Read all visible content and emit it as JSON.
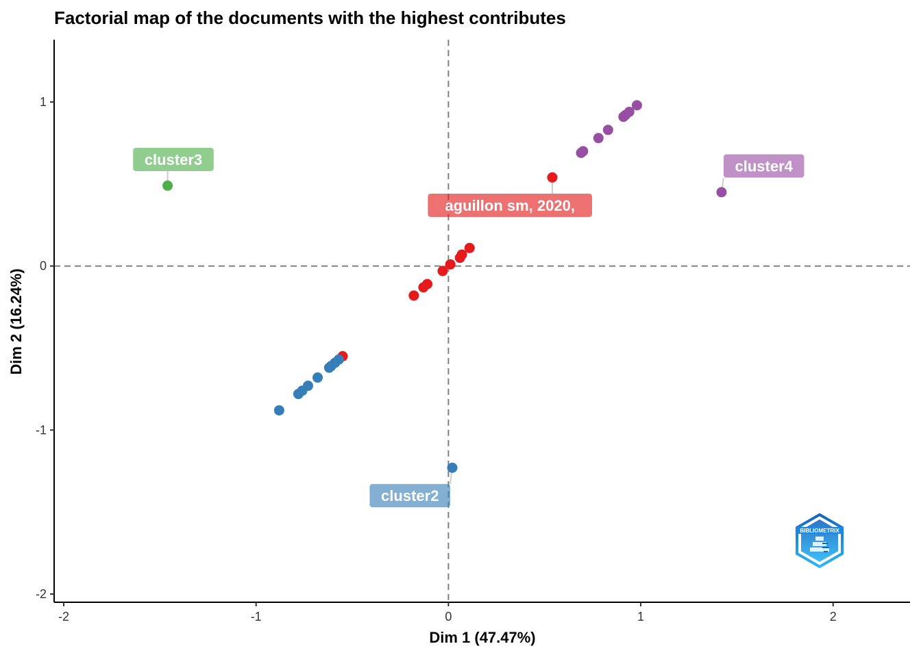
{
  "chart_data": {
    "type": "scatter",
    "title": "Factorial map of the documents with the highest contributes",
    "xlabel": "Dim 1 (47.47%)",
    "ylabel": "Dim 2 (16.24%)",
    "xlim": [
      -2.05,
      2.4
    ],
    "ylim": [
      -2.05,
      1.38
    ],
    "x_ticks": [
      -2,
      -1,
      0,
      1,
      2
    ],
    "y_ticks": [
      -2,
      -1,
      0,
      1
    ],
    "x_tick_labels": [
      "-2",
      "-1",
      "0",
      "1",
      "2"
    ],
    "y_tick_labels": [
      "-2",
      "-1",
      "0",
      "1"
    ],
    "reference_lines": {
      "x": 0,
      "y": 0,
      "style": "dashed"
    },
    "grid": false,
    "legend": "none",
    "series": [
      {
        "color": "#E41A1C",
        "points": [
          {
            "x": 0.54,
            "y": 0.54
          },
          {
            "x": 0.11,
            "y": 0.11
          },
          {
            "x": 0.07,
            "y": 0.07
          },
          {
            "x": 0.06,
            "y": 0.05
          },
          {
            "x": 0.01,
            "y": 0.01
          },
          {
            "x": -0.03,
            "y": -0.03
          },
          {
            "x": -0.11,
            "y": -0.11
          },
          {
            "x": -0.13,
            "y": -0.13
          },
          {
            "x": -0.18,
            "y": -0.18
          },
          {
            "x": -0.55,
            "y": -0.55
          }
        ]
      },
      {
        "color": "#377EB8",
        "points": [
          {
            "x": -0.57,
            "y": -0.57
          },
          {
            "x": -0.59,
            "y": -0.59
          },
          {
            "x": -0.61,
            "y": -0.61
          },
          {
            "x": -0.62,
            "y": -0.62
          },
          {
            "x": -0.68,
            "y": -0.68
          },
          {
            "x": -0.73,
            "y": -0.73
          },
          {
            "x": -0.76,
            "y": -0.76
          },
          {
            "x": -0.78,
            "y": -0.78
          },
          {
            "x": -0.88,
            "y": -0.88
          },
          {
            "x": 0.02,
            "y": -1.23
          }
        ]
      },
      {
        "color": "#4DAF4A",
        "points": [
          {
            "x": -1.46,
            "y": 0.49
          }
        ]
      },
      {
        "color": "#984EA3",
        "points": [
          {
            "x": 0.98,
            "y": 0.98
          },
          {
            "x": 0.94,
            "y": 0.94
          },
          {
            "x": 0.92,
            "y": 0.92
          },
          {
            "x": 0.91,
            "y": 0.91
          },
          {
            "x": 0.83,
            "y": 0.83
          },
          {
            "x": 0.78,
            "y": 0.78
          },
          {
            "x": 0.7,
            "y": 0.7
          },
          {
            "x": 0.69,
            "y": 0.69
          },
          {
            "x": 1.42,
            "y": 0.45
          }
        ]
      }
    ],
    "annotations": [
      {
        "text": "cluster3",
        "color": "#4DAF4A",
        "point": {
          "x": -1.46,
          "y": 0.49
        },
        "anchor": {
          "x": -1.43,
          "y": 0.65
        }
      },
      {
        "text": "cluster4",
        "color": "#984EA3",
        "point": {
          "x": 1.42,
          "y": 0.45
        },
        "anchor": {
          "x": 1.64,
          "y": 0.61
        }
      },
      {
        "text": "aguillon sm, 2020,",
        "color": "#E41A1C",
        "point": {
          "x": 0.54,
          "y": 0.54
        },
        "anchor": {
          "x": 0.32,
          "y": 0.37
        }
      },
      {
        "text": "cluster2",
        "color": "#377EB8",
        "point": {
          "x": 0.02,
          "y": -1.23
        },
        "anchor": {
          "x": -0.2,
          "y": -1.4
        }
      }
    ]
  },
  "watermark": {
    "text": "BIBLIOMETRIX",
    "color": "#1E88E5"
  }
}
